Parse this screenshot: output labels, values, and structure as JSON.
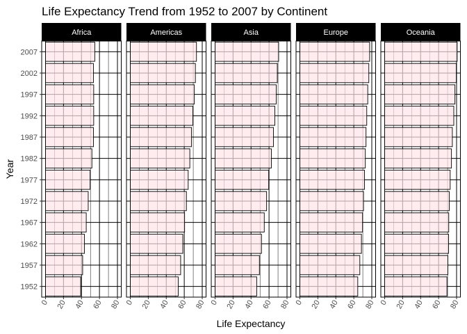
{
  "chart_data": {
    "type": "bar",
    "orientation": "horizontal",
    "title": "Life Expectancy Trend from 1952 to 2007 by Continent",
    "xlabel": "Life Expectancy",
    "ylabel": "Year",
    "xlim": [
      0,
      80
    ],
    "x_ticks": [
      "0",
      "20",
      "40",
      "60",
      "80"
    ],
    "categories": [
      "1952",
      "1957",
      "1962",
      "1967",
      "1972",
      "1977",
      "1982",
      "1987",
      "1992",
      "1997",
      "2002",
      "2007"
    ],
    "facets": [
      {
        "name": "Africa",
        "values": [
          39.1,
          41.3,
          43.3,
          45.3,
          47.5,
          49.6,
          51.6,
          53.3,
          53.6,
          53.6,
          53.3,
          54.8
        ]
      },
      {
        "name": "Americas",
        "values": [
          53.3,
          56.0,
          58.4,
          60.4,
          62.4,
          64.4,
          66.2,
          68.1,
          69.6,
          71.2,
          72.4,
          73.6
        ]
      },
      {
        "name": "Asia",
        "values": [
          46.3,
          49.3,
          51.6,
          54.7,
          57.3,
          59.6,
          62.6,
          64.9,
          66.5,
          68.0,
          69.2,
          70.7
        ]
      },
      {
        "name": "Europe",
        "values": [
          64.4,
          66.7,
          68.5,
          69.7,
          70.8,
          71.9,
          72.8,
          73.6,
          74.4,
          75.5,
          76.7,
          77.6
        ]
      },
      {
        "name": "Oceania",
        "values": [
          69.3,
          70.3,
          71.1,
          71.3,
          71.9,
          72.9,
          74.3,
          75.3,
          76.9,
          78.2,
          79.7,
          80.7
        ]
      }
    ],
    "bar_fill": "#ffe4e8",
    "bar_stroke": "#000000",
    "strip_fill": "#000000",
    "grid": true
  }
}
